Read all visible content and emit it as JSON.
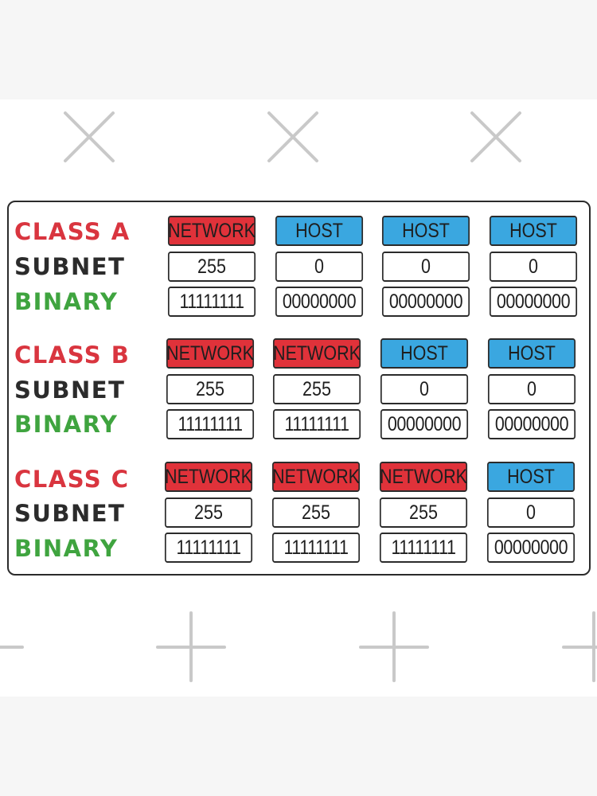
{
  "labels": {
    "subnet": "SUBNET",
    "binary": "BINARY"
  },
  "classes": [
    {
      "name": "CLASS A",
      "types": [
        "NETWORK",
        "HOST",
        "HOST",
        "HOST"
      ],
      "subnet": [
        "255",
        "0",
        "0",
        "0"
      ],
      "binary": [
        "11111111",
        "00000000",
        "00000000",
        "00000000"
      ]
    },
    {
      "name": "CLASS B",
      "types": [
        "NETWORK",
        "NETWORK",
        "HOST",
        "HOST"
      ],
      "subnet": [
        "255",
        "255",
        "0",
        "0"
      ],
      "binary": [
        "11111111",
        "11111111",
        "00000000",
        "00000000"
      ]
    },
    {
      "name": "CLASS C",
      "types": [
        "NETWORK",
        "NETWORK",
        "NETWORK",
        "HOST"
      ],
      "subnet": [
        "255",
        "255",
        "255",
        "0"
      ],
      "binary": [
        "11111111",
        "11111111",
        "11111111",
        "00000000"
      ]
    }
  ],
  "colors": {
    "network": "#e0323a",
    "host": "#3aa7e0",
    "class_label": "#d9353f",
    "subnet_label": "#2b2b2b",
    "binary_label": "#3fa43f"
  }
}
